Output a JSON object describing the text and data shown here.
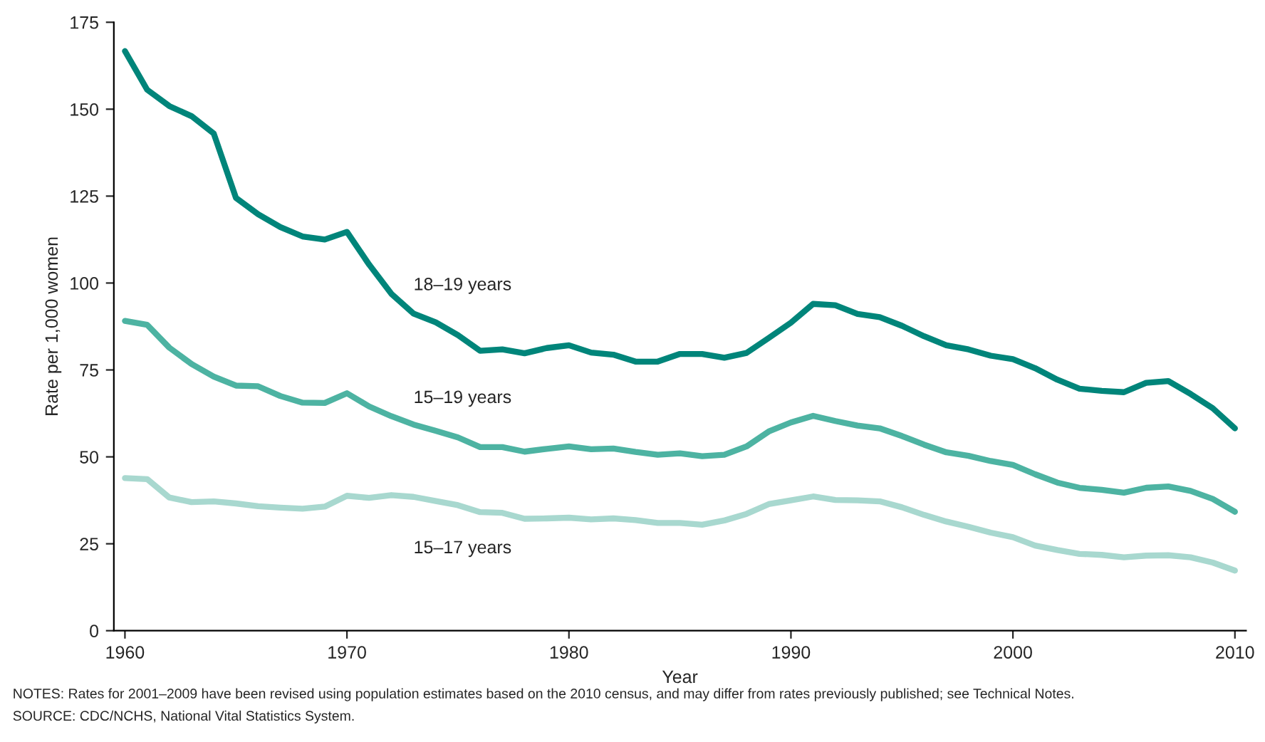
{
  "chart_data": {
    "type": "line",
    "xlabel": "Year",
    "ylabel": "Rate per 1,000 women",
    "x": [
      1960,
      1961,
      1962,
      1963,
      1964,
      1965,
      1966,
      1967,
      1968,
      1969,
      1970,
      1971,
      1972,
      1973,
      1974,
      1975,
      1976,
      1977,
      1978,
      1979,
      1980,
      1981,
      1982,
      1983,
      1984,
      1985,
      1986,
      1987,
      1988,
      1989,
      1990,
      1991,
      1992,
      1993,
      1994,
      1995,
      1996,
      1997,
      1998,
      1999,
      2000,
      2001,
      2002,
      2003,
      2004,
      2005,
      2006,
      2007,
      2008,
      2009,
      2010
    ],
    "series": [
      {
        "name": "18–19 years",
        "color": "#00857a",
        "values": [
          166.7,
          155.6,
          150.9,
          148.0,
          143.0,
          124.5,
          119.8,
          116.1,
          113.4,
          112.5,
          114.7,
          105.3,
          96.9,
          91.2,
          88.7,
          85.0,
          80.5,
          80.9,
          79.8,
          81.3,
          82.1,
          80.0,
          79.4,
          77.4,
          77.4,
          79.6,
          79.6,
          78.5,
          79.9,
          84.2,
          88.6,
          94.0,
          93.6,
          91.1,
          90.2,
          87.7,
          84.7,
          82.1,
          80.9,
          79.1,
          78.1,
          75.5,
          72.2,
          69.6,
          69.0,
          68.6,
          71.3,
          71.8,
          68.1,
          64.0,
          58.2
        ]
      },
      {
        "name": "15–19 years",
        "color": "#4db3a2",
        "values": [
          89.1,
          88.0,
          81.4,
          76.7,
          73.1,
          70.5,
          70.3,
          67.5,
          65.6,
          65.5,
          68.3,
          64.5,
          61.7,
          59.3,
          57.5,
          55.6,
          52.8,
          52.8,
          51.5,
          52.3,
          53.0,
          52.2,
          52.4,
          51.4,
          50.6,
          51.0,
          50.2,
          50.6,
          53.0,
          57.3,
          59.9,
          61.8,
          60.3,
          59.0,
          58.2,
          56.0,
          53.5,
          51.3,
          50.3,
          48.8,
          47.7,
          45.0,
          42.6,
          41.1,
          40.5,
          39.7,
          41.1,
          41.5,
          40.2,
          37.9,
          34.2
        ]
      },
      {
        "name": "15–17 years",
        "color": "#a8d8cf",
        "values": [
          43.9,
          43.6,
          38.3,
          37.0,
          37.2,
          36.6,
          35.8,
          35.4,
          35.1,
          35.7,
          38.8,
          38.2,
          39.0,
          38.5,
          37.3,
          36.1,
          34.1,
          33.9,
          32.2,
          32.3,
          32.5,
          32.0,
          32.3,
          31.8,
          31.0,
          31.0,
          30.5,
          31.7,
          33.6,
          36.4,
          37.5,
          38.6,
          37.6,
          37.5,
          37.2,
          35.5,
          33.3,
          31.4,
          29.9,
          28.2,
          26.9,
          24.5,
          23.2,
          22.1,
          21.8,
          21.1,
          21.6,
          21.7,
          21.1,
          19.6,
          17.3
        ]
      }
    ],
    "xlim": [
      1959.5,
      2010.5
    ],
    "xticks": [
      1960,
      1970,
      1980,
      1990,
      2000,
      2010
    ],
    "ylim": [
      0,
      175
    ],
    "yticks": [
      0,
      25,
      50,
      75,
      100,
      125,
      150,
      175
    ],
    "grid": false,
    "legend": false,
    "marker": "none",
    "line_style": "solid",
    "annotations": [
      "NOTES: Rates for 2001–2009 have been revised using population estimates based on the 2010 census, and may differ from rates previously published; see Technical Notes.",
      "SOURCE: CDC/NCHS, National Vital Statistics System."
    ]
  }
}
